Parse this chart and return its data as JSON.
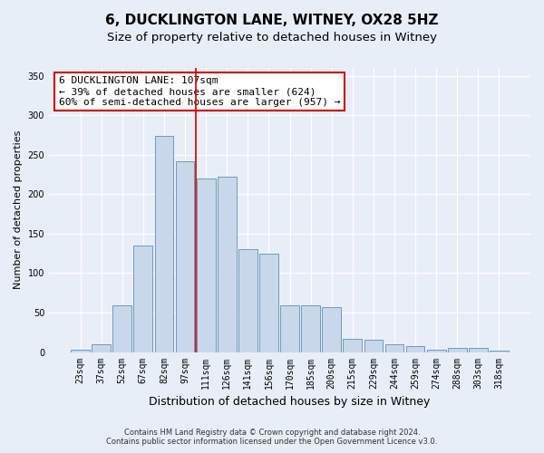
{
  "title": "6, DUCKLINGTON LANE, WITNEY, OX28 5HZ",
  "subtitle": "Size of property relative to detached houses in Witney",
  "xlabel": "Distribution of detached houses by size in Witney",
  "ylabel": "Number of detached properties",
  "bar_labels": [
    "23sqm",
    "37sqm",
    "52sqm",
    "67sqm",
    "82sqm",
    "97sqm",
    "111sqm",
    "126sqm",
    "141sqm",
    "156sqm",
    "170sqm",
    "185sqm",
    "200sqm",
    "215sqm",
    "229sqm",
    "244sqm",
    "259sqm",
    "274sqm",
    "288sqm",
    "303sqm",
    "318sqm"
  ],
  "bar_heights": [
    3,
    10,
    59,
    135,
    274,
    242,
    220,
    222,
    130,
    125,
    59,
    59,
    57,
    17,
    15,
    10,
    8,
    3,
    5,
    5,
    2
  ],
  "bar_color": "#c8d8ea",
  "bar_edge_color": "#7099bb",
  "vline_x_index": 6,
  "vline_color": "#cc0000",
  "annotation_text": "6 DUCKLINGTON LANE: 107sqm\n← 39% of detached houses are smaller (624)\n60% of semi-detached houses are larger (957) →",
  "annotation_box_color": "#ffffff",
  "annotation_box_edge": "#cc0000",
  "ylim": [
    0,
    360
  ],
  "yticks": [
    0,
    50,
    100,
    150,
    200,
    250,
    300,
    350
  ],
  "footer": "Contains HM Land Registry data © Crown copyright and database right 2024.\nContains public sector information licensed under the Open Government Licence v3.0.",
  "title_fontsize": 11,
  "subtitle_fontsize": 9.5,
  "tick_fontsize": 7,
  "ylabel_fontsize": 8,
  "xlabel_fontsize": 9,
  "annotation_fontsize": 8,
  "background_color": "#e8eef8",
  "plot_bg_color": "#e8eef8"
}
